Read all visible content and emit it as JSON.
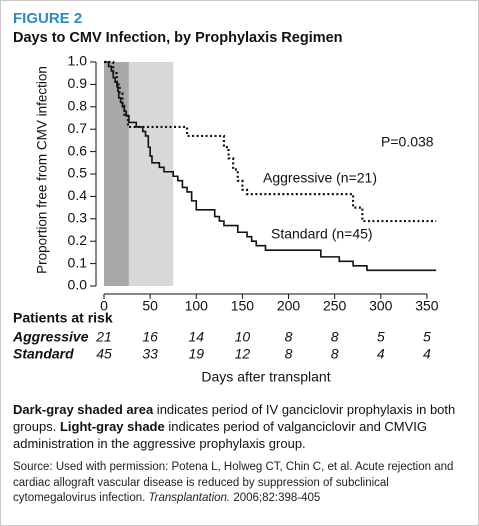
{
  "header": {
    "figure_label": "FIGURE 2",
    "title": "Days to CMV Infection, by Prophylaxis Regimen"
  },
  "chart_data": {
    "type": "step",
    "y_label": "Proportion free from CMV infection",
    "x_label": "Days after transplant",
    "xlim": [
      0,
      362
    ],
    "ylim": [
      0,
      1
    ],
    "xticks": [
      0,
      50,
      100,
      150,
      200,
      250,
      300,
      350
    ],
    "yticks": [
      {
        "value": 0,
        "label": "0.0"
      },
      0.1,
      0.2,
      0.3,
      0.4,
      0.5,
      0.6,
      0.7,
      0.8,
      0.9,
      {
        "value": 1,
        "label": "1.0"
      }
    ],
    "shaded_regions": [
      {
        "x": [
          0,
          27
        ],
        "color": "#a9a9a9"
      },
      {
        "x": [
          27,
          75
        ],
        "color": "#d8d8d8"
      }
    ],
    "series": [
      {
        "name": "Aggressive (n=21)",
        "color": "#111111",
        "dash": "dotted",
        "x": [
          0,
          10,
          14,
          17,
          20,
          22,
          26,
          90,
          130,
          135,
          140,
          145,
          150,
          155,
          270,
          280,
          360
        ],
        "values": [
          1.0,
          0.95,
          0.9,
          0.86,
          0.81,
          0.76,
          0.71,
          0.67,
          0.62,
          0.57,
          0.52,
          0.47,
          0.43,
          0.41,
          0.35,
          0.29,
          0.29
        ]
      },
      {
        "name": "Standard (n=45)",
        "color": "#111111",
        "dash": "solid",
        "x": [
          0,
          5,
          8,
          10,
          12,
          14,
          15,
          16,
          18,
          20,
          22,
          24,
          27,
          35,
          42,
          45,
          48,
          50,
          52,
          60,
          65,
          75,
          80,
          85,
          90,
          95,
          100,
          120,
          125,
          130,
          145,
          155,
          160,
          165,
          175,
          235,
          255,
          270,
          285,
          360
        ],
        "values": [
          1.0,
          0.98,
          0.96,
          0.93,
          0.91,
          0.89,
          0.87,
          0.84,
          0.82,
          0.8,
          0.78,
          0.76,
          0.73,
          0.71,
          0.69,
          0.67,
          0.62,
          0.58,
          0.55,
          0.53,
          0.51,
          0.49,
          0.47,
          0.44,
          0.42,
          0.38,
          0.34,
          0.31,
          0.29,
          0.27,
          0.24,
          0.22,
          0.2,
          0.18,
          0.16,
          0.13,
          0.11,
          0.09,
          0.07,
          0.07
        ]
      }
    ],
    "annotations": [
      "P=0.038"
    ]
  },
  "risk_table": {
    "title": "Patients at risk",
    "rows": [
      {
        "label": "Aggressive",
        "values": [
          21,
          16,
          14,
          10,
          8,
          8,
          5,
          5
        ]
      },
      {
        "label": "Standard",
        "values": [
          45,
          33,
          19,
          12,
          8,
          8,
          4,
          4
        ]
      }
    ]
  },
  "note": [
    {
      "text": "Dark-gray shaded area",
      "style": "bold"
    },
    {
      "text": " indicates period of IV ganciclovir prophylaxis in both groups. ",
      "style": "normal"
    },
    {
      "text": "Light-gray shade",
      "style": "bold"
    },
    {
      "text": " indicates period of valganciclovir and CMVIG administration in the aggressive prophylaxis group.",
      "style": "normal"
    }
  ],
  "source": [
    {
      "text": "Source: Used with permission: Potena L, Holweg CT, Chin C, et al. Acute rejection and cardiac allograft vascular disease is reduced by suppression of subclinical cytomegalovirus infection. ",
      "style": "normal"
    },
    {
      "text": "Transplantation.",
      "style": "italic"
    },
    {
      "text": " 2006;82:398-405",
      "style": "normal"
    }
  ]
}
